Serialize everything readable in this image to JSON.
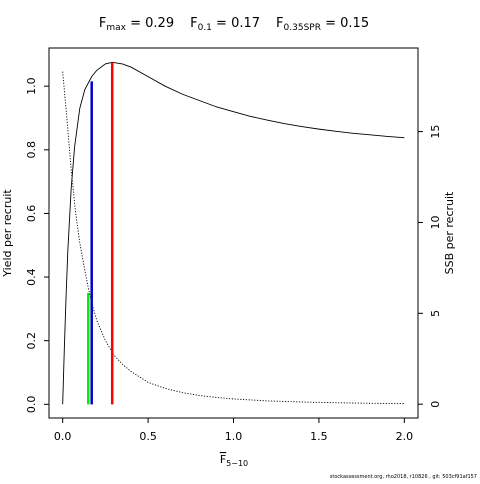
{
  "chart_data": {
    "type": "line",
    "title": {
      "fmax": {
        "symbol": "F",
        "sub": "max",
        "value": "0.29"
      },
      "f01": {
        "symbol": "F",
        "sub": "0.1",
        "value": "0.17"
      },
      "f35": {
        "symbol": "F",
        "sub": "0.35SPR",
        "value": "0.15"
      }
    },
    "xlabel": {
      "symbol": "F",
      "sub": "5−10"
    },
    "ylabel_left": "Yield per recruit",
    "ylabel_right": "SSB per recruit",
    "xlim": [
      -0.08,
      2.08
    ],
    "ylim_left": [
      -0.043,
      1.12
    ],
    "ylim_right": [
      -0.76,
      19.6
    ],
    "x_ticks": [
      {
        "value": 0.0,
        "label": "0.0"
      },
      {
        "value": 0.5,
        "label": "0.5"
      },
      {
        "value": 1.0,
        "label": "1.0"
      },
      {
        "value": 1.5,
        "label": "1.5"
      },
      {
        "value": 2.0,
        "label": "2.0"
      }
    ],
    "y_ticks_left": [
      {
        "value": 0.0,
        "label": "0.0"
      },
      {
        "value": 0.2,
        "label": "0.2"
      },
      {
        "value": 0.4,
        "label": "0.4"
      },
      {
        "value": 0.6,
        "label": "0.6"
      },
      {
        "value": 0.8,
        "label": "0.8"
      },
      {
        "value": 1.0,
        "label": "1.0"
      }
    ],
    "y_ticks_right": [
      {
        "value": 0,
        "label": "0"
      },
      {
        "value": 5,
        "label": "5"
      },
      {
        "value": 10,
        "label": "10"
      },
      {
        "value": 15,
        "label": "15"
      }
    ],
    "series": [
      {
        "key": "yield",
        "axis": "left",
        "style": "solid",
        "color": "#000000",
        "x": [
          0.0,
          0.01,
          0.02,
          0.03,
          0.05,
          0.07,
          0.1,
          0.13,
          0.15,
          0.17,
          0.2,
          0.25,
          0.29,
          0.35,
          0.4,
          0.5,
          0.6,
          0.7,
          0.8,
          0.9,
          1.0,
          1.1,
          1.2,
          1.3,
          1.4,
          1.5,
          1.6,
          1.7,
          1.8,
          1.9,
          2.0
        ],
        "y": [
          0.0,
          0.18,
          0.34,
          0.48,
          0.68,
          0.81,
          0.93,
          0.99,
          1.01,
          1.03,
          1.05,
          1.07,
          1.075,
          1.07,
          1.06,
          1.03,
          1.0,
          0.975,
          0.955,
          0.935,
          0.92,
          0.905,
          0.893,
          0.882,
          0.873,
          0.865,
          0.858,
          0.852,
          0.847,
          0.842,
          0.838
        ]
      },
      {
        "key": "ssb",
        "axis": "right",
        "style": "dotted",
        "color": "#000000",
        "x": [
          0.0,
          0.025,
          0.05,
          0.075,
          0.1,
          0.125,
          0.15,
          0.175,
          0.2,
          0.25,
          0.3,
          0.35,
          0.4,
          0.5,
          0.6,
          0.7,
          0.8,
          0.9,
          1.0,
          1.2,
          1.4,
          1.6,
          1.8,
          2.0
        ],
        "y": [
          18.3,
          15.7,
          12.9,
          10.6,
          8.9,
          7.6,
          6.4,
          5.4,
          4.6,
          3.5,
          2.7,
          2.2,
          1.8,
          1.2,
          0.87,
          0.64,
          0.48,
          0.37,
          0.29,
          0.18,
          0.12,
          0.08,
          0.05,
          0.03
        ]
      }
    ],
    "reference_lines": [
      {
        "key": "f35spr",
        "x": 0.15,
        "y_top": 0.35,
        "color": "#00ee00"
      },
      {
        "key": "f01",
        "x": 0.17,
        "y_top": 1.015,
        "color": "#0000cc"
      },
      {
        "key": "fmax",
        "x": 0.29,
        "y_top": 1.075,
        "color": "#ff0000"
      }
    ],
    "credit": "stockassessment.org, rho2018, r10826 , git: 503cf91af157",
    "grid": false,
    "legend": "none"
  }
}
